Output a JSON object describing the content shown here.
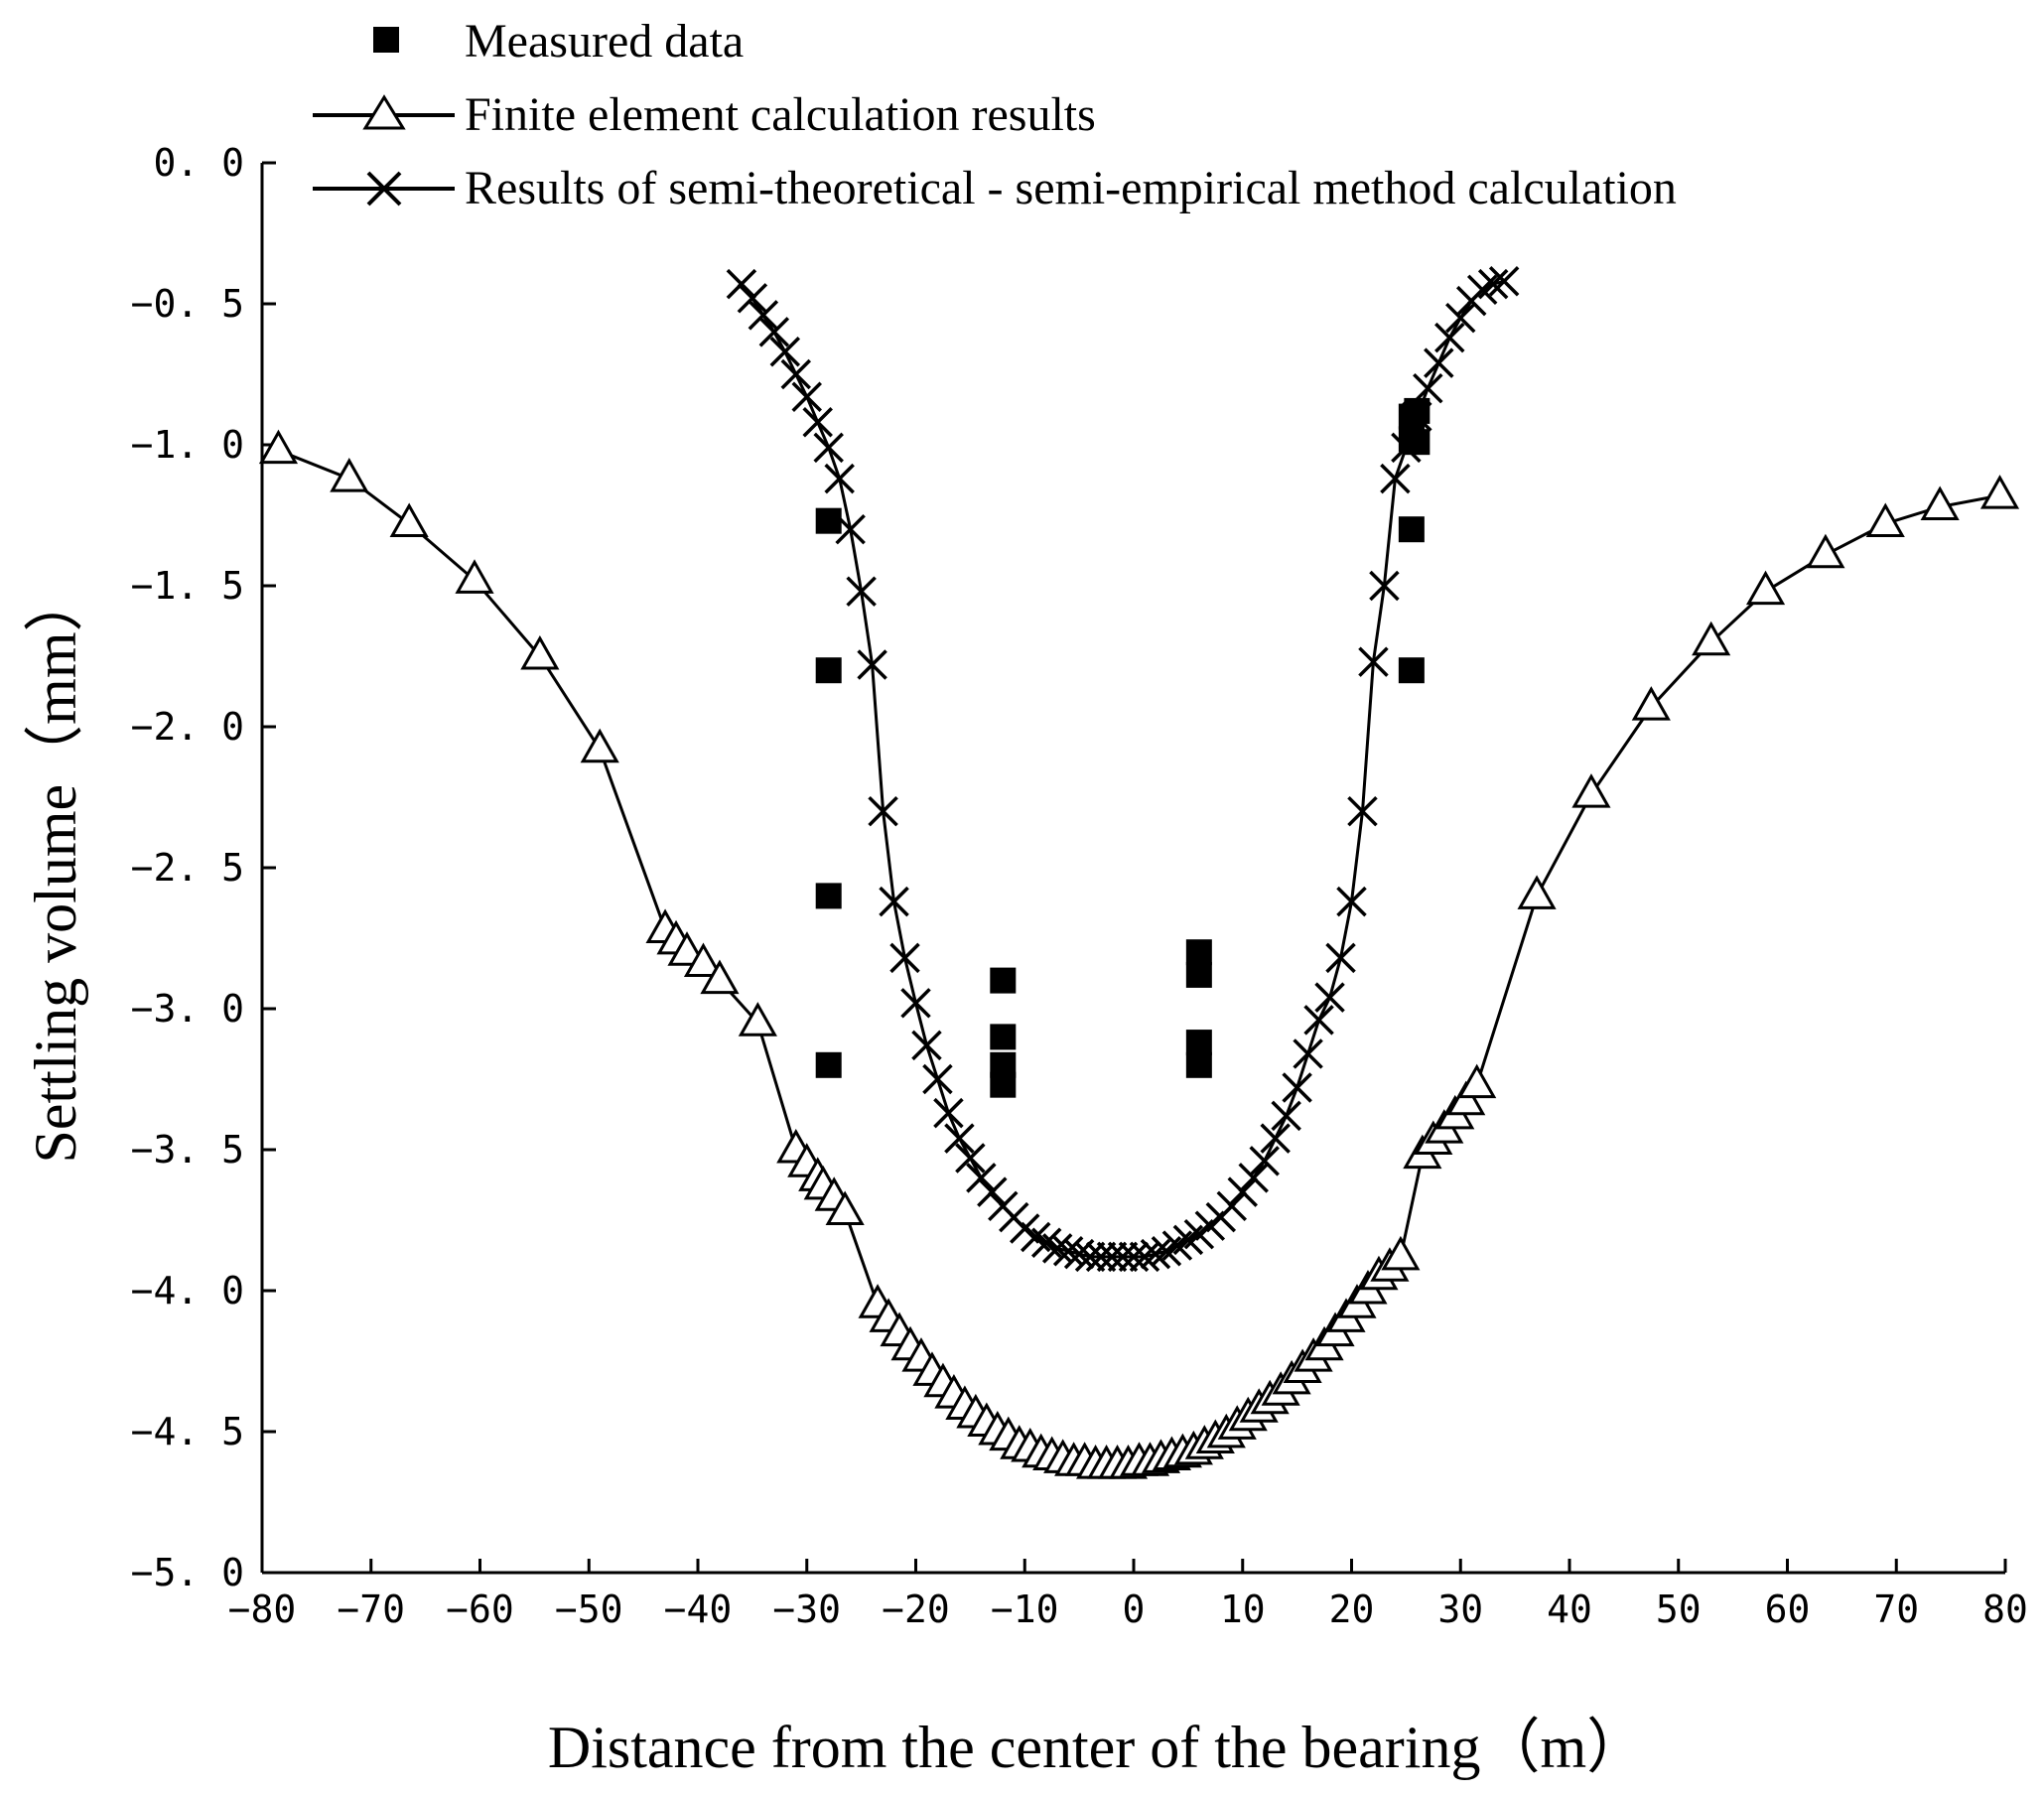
{
  "chart_data": {
    "type": "line",
    "title": "",
    "xlabel": "Distance from the center of the bearing（m）",
    "ylabel": "Settling volume（mm）",
    "xlim": [
      -80,
      80
    ],
    "ylim": [
      -5.0,
      0.0
    ],
    "x_ticks": [
      -80,
      -70,
      -60,
      -50,
      -40,
      -30,
      -20,
      -10,
      0,
      10,
      20,
      30,
      40,
      50,
      60,
      70,
      80
    ],
    "x_tick_labels": [
      "−80",
      "−70",
      "−60",
      "−50",
      "−40",
      "−30",
      "−20",
      "−10",
      "0",
      "10",
      "20",
      "30",
      "40",
      "50",
      "60",
      "70",
      "80"
    ],
    "y_ticks": [
      0.0,
      -0.5,
      -1.0,
      -1.5,
      -2.0,
      -2.5,
      -3.0,
      -3.5,
      -4.0,
      -4.5,
      -5.0
    ],
    "y_tick_labels": [
      "0. 0",
      "−0. 5",
      "−1. 0",
      "−1. 5",
      "−2. 0",
      "−2. 5",
      "−3. 0",
      "−3. 5",
      "−4. 0",
      "−4. 5",
      "−5. 0"
    ],
    "grid": false,
    "legend_position": "top",
    "series": [
      {
        "name": "Measured data",
        "marker": "square",
        "line": false,
        "x": [
          -28,
          -28,
          -28,
          -28,
          -12,
          -12,
          -12,
          -12,
          6,
          6,
          6,
          6,
          25.5,
          25.5,
          25.5,
          25.5,
          26,
          26
        ],
        "y": [
          -1.27,
          -1.8,
          -2.6,
          -3.2,
          -2.9,
          -3.1,
          -3.2,
          -3.27,
          -2.8,
          -2.88,
          -3.12,
          -3.2,
          -0.9,
          -0.98,
          -1.3,
          -1.8,
          -0.88,
          -0.99
        ]
      },
      {
        "name": "Finite element calculation results",
        "marker": "triangle",
        "line": true,
        "x": [
          -78.5,
          -72,
          -66.5,
          -60.5,
          -54.5,
          -49,
          -43,
          -42,
          -41,
          -39.5,
          -38,
          -34.5,
          -31,
          -30,
          -29,
          -28.5,
          -27.5,
          -26.5,
          -23.5,
          -22.5,
          -21.5,
          -20.5,
          -19.5,
          -18.5,
          -17.5,
          -16.5,
          -15.5,
          -14.5,
          -13.5,
          -12.5,
          -11.5,
          -10.5,
          -9.5,
          -8.5,
          -7.5,
          -6.5,
          -5.5,
          -4.5,
          -3.5,
          -2.5,
          -1.5,
          -0.5,
          0.5,
          1.5,
          2.5,
          3.5,
          4.5,
          5.5,
          6.5,
          7.5,
          8.5,
          9.5,
          10.5,
          11.5,
          12.5,
          13.5,
          14.5,
          15.5,
          16.5,
          17.5,
          18.5,
          19.5,
          20.5,
          21.5,
          22.5,
          23.5,
          24.5,
          26.5,
          27.5,
          28.5,
          29.5,
          30.5,
          31.5,
          37,
          42,
          47.5,
          53,
          58,
          63.5,
          69,
          74,
          79.5
        ],
        "y": [
          -1.02,
          -1.12,
          -1.28,
          -1.48,
          -1.75,
          -2.08,
          -2.72,
          -2.76,
          -2.8,
          -2.84,
          -2.9,
          -3.05,
          -3.5,
          -3.55,
          -3.6,
          -3.63,
          -3.67,
          -3.72,
          -4.05,
          -4.1,
          -4.15,
          -4.2,
          -4.24,
          -4.29,
          -4.33,
          -4.37,
          -4.41,
          -4.44,
          -4.47,
          -4.5,
          -4.52,
          -4.55,
          -4.56,
          -4.58,
          -4.59,
          -4.6,
          -4.61,
          -4.61,
          -4.62,
          -4.62,
          -4.62,
          -4.62,
          -4.61,
          -4.61,
          -4.6,
          -4.59,
          -4.58,
          -4.57,
          -4.55,
          -4.53,
          -4.51,
          -4.48,
          -4.45,
          -4.42,
          -4.39,
          -4.36,
          -4.32,
          -4.28,
          -4.24,
          -4.2,
          -4.15,
          -4.1,
          -4.05,
          -4.0,
          -3.95,
          -3.92,
          -3.88,
          -3.52,
          -3.47,
          -3.43,
          -3.38,
          -3.33,
          -3.27,
          -2.6,
          -2.24,
          -1.93,
          -1.7,
          -1.52,
          -1.39,
          -1.28,
          -1.22,
          -1.18
        ]
      },
      {
        "name": "Results of semi-theoretical - semi-empirical method calculation",
        "marker": "x",
        "line": true,
        "x": [
          -36,
          -35,
          -34,
          -33,
          -32,
          -31,
          -30,
          -29,
          -28,
          -27,
          -26,
          -25,
          -24,
          -23,
          -22,
          -21,
          -20,
          -19,
          -18,
          -17,
          -16,
          -15,
          -14,
          -13,
          -12,
          -11,
          -10,
          -9,
          -8,
          -7,
          -6,
          -5,
          -4,
          -3,
          -2,
          -1,
          0,
          1,
          2,
          3,
          4,
          5,
          6,
          7,
          8,
          9,
          10,
          11,
          12,
          13,
          14,
          15,
          16,
          17,
          18,
          19,
          20,
          21,
          22,
          23,
          24,
          25,
          26,
          27,
          28,
          29,
          30,
          31,
          32,
          33,
          34
        ],
        "y": [
          -0.43,
          -0.48,
          -0.54,
          -0.6,
          -0.67,
          -0.75,
          -0.83,
          -0.92,
          -1.01,
          -1.12,
          -1.3,
          -1.52,
          -1.78,
          -2.3,
          -2.62,
          -2.82,
          -2.98,
          -3.13,
          -3.25,
          -3.37,
          -3.46,
          -3.53,
          -3.6,
          -3.65,
          -3.7,
          -3.74,
          -3.78,
          -3.81,
          -3.83,
          -3.85,
          -3.86,
          -3.87,
          -3.88,
          -3.88,
          -3.88,
          -3.88,
          -3.88,
          -3.88,
          -3.87,
          -3.86,
          -3.84,
          -3.82,
          -3.8,
          -3.77,
          -3.74,
          -3.7,
          -3.65,
          -3.6,
          -3.54,
          -3.46,
          -3.38,
          -3.28,
          -3.16,
          -3.04,
          -2.96,
          -2.82,
          -2.62,
          -2.3,
          -1.77,
          -1.5,
          -1.12,
          -1.01,
          -0.9,
          -0.8,
          -0.71,
          -0.62,
          -0.55,
          -0.49,
          -0.45,
          -0.43,
          -0.42
        ]
      }
    ]
  }
}
